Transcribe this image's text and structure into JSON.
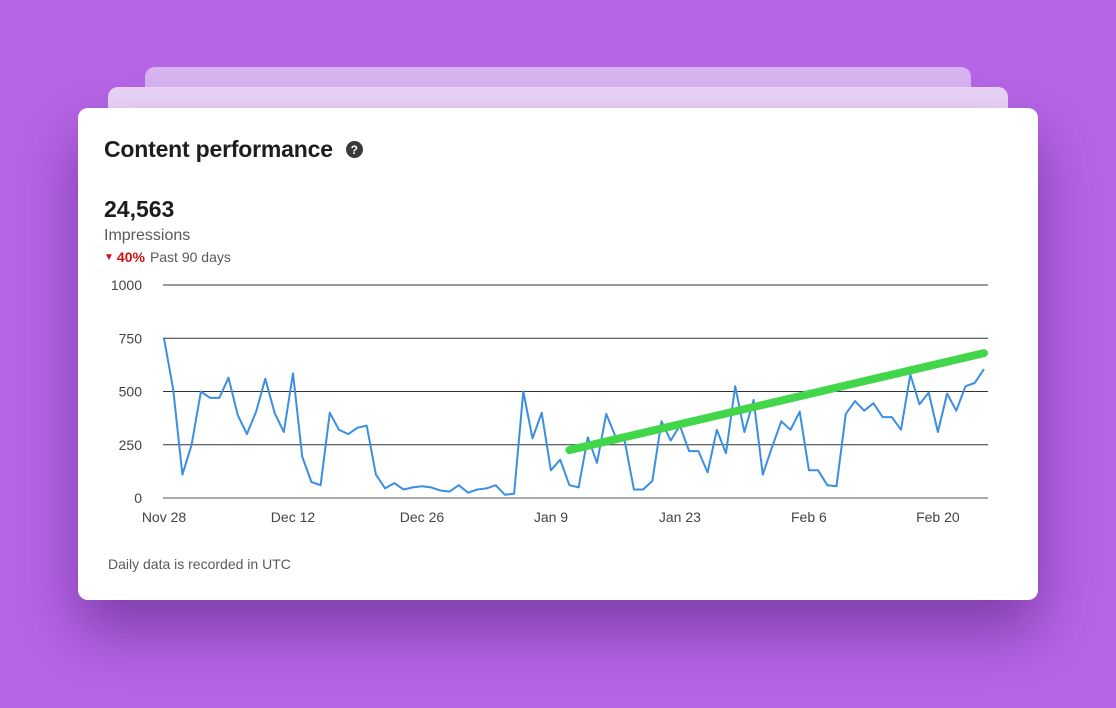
{
  "card": {
    "title": "Content performance",
    "help_icon": "question-circle-icon",
    "metric_value": "24,563",
    "metric_label": "Impressions",
    "change_icon": "triangle-down-icon",
    "change_pct": "40%",
    "change_period": "Past 90 days",
    "footnote": "Daily data is recorded in UTC"
  },
  "colors": {
    "background": "#b565e6",
    "series": "#3a8fe0",
    "trend": "#42d64a",
    "negative": "#cc1016"
  },
  "chart_data": {
    "type": "line",
    "title": "",
    "xlabel": "",
    "ylabel": "",
    "ylim": [
      0,
      1000
    ],
    "yticks": [
      0,
      250,
      500,
      750,
      1000
    ],
    "ytick_labels": [
      "0",
      "250",
      "500",
      "750",
      "1000"
    ],
    "xtick_labels": [
      "Nov 28",
      "Dec 12",
      "Dec 26",
      "Jan 9",
      "Jan 23",
      "Feb 6",
      "Feb 20"
    ],
    "xtick_dates": [
      "Nov 28",
      "Dec 12",
      "Dec 26",
      "Jan 9",
      "Jan 23",
      "Feb 6",
      "Feb 20"
    ],
    "grid": true,
    "legend": "none",
    "series": [
      {
        "x": [
          "Nov 28",
          "Nov 29",
          "Nov 30",
          "Dec 1",
          "Dec 2",
          "Dec 3",
          "Dec 4",
          "Dec 5",
          "Dec 6",
          "Dec 7",
          "Dec 8",
          "Dec 9",
          "Dec 10",
          "Dec 11",
          "Dec 12",
          "Dec 13",
          "Dec 14",
          "Dec 15",
          "Dec 16",
          "Dec 17",
          "Dec 18",
          "Dec 19",
          "Dec 20",
          "Dec 21",
          "Dec 22",
          "Dec 23",
          "Dec 24",
          "Dec 25",
          "Dec 26",
          "Dec 27",
          "Dec 28",
          "Dec 29",
          "Dec 30",
          "Dec 31",
          "Jan 1",
          "Jan 2",
          "Jan 3",
          "Jan 4",
          "Jan 5",
          "Jan 6",
          "Jan 7",
          "Jan 8",
          "Jan 9",
          "Jan 10",
          "Jan 11",
          "Jan 12",
          "Jan 13",
          "Jan 14",
          "Jan 15",
          "Jan 16",
          "Jan 17",
          "Jan 18",
          "Jan 19",
          "Jan 20",
          "Jan 21",
          "Jan 22",
          "Jan 23",
          "Jan 24",
          "Jan 25",
          "Jan 26",
          "Jan 27",
          "Jan 28",
          "Jan 29",
          "Jan 30",
          "Jan 31",
          "Feb 1",
          "Feb 2",
          "Feb 3",
          "Feb 4",
          "Feb 5",
          "Feb 6",
          "Feb 7",
          "Feb 8",
          "Feb 9",
          "Feb 10",
          "Feb 11",
          "Feb 12",
          "Feb 13",
          "Feb 14",
          "Feb 15",
          "Feb 16",
          "Feb 17",
          "Feb 18",
          "Feb 19",
          "Feb 20",
          "Feb 21",
          "Feb 22",
          "Feb 23",
          "Feb 24",
          "Feb 25"
        ],
        "values": [
          750,
          510,
          110,
          250,
          500,
          470,
          470,
          565,
          390,
          300,
          405,
          560,
          400,
          310,
          585,
          195,
          75,
          60,
          400,
          320,
          300,
          330,
          340,
          110,
          45,
          70,
          40,
          50,
          55,
          50,
          35,
          30,
          60,
          25,
          40,
          45,
          60,
          15,
          20,
          500,
          280,
          400,
          130,
          180,
          60,
          50,
          285,
          165,
          395,
          290,
          270,
          40,
          40,
          80,
          360,
          270,
          340,
          220,
          220,
          120,
          320,
          210,
          525,
          310,
          460,
          110,
          240,
          360,
          320,
          405,
          130,
          130,
          60,
          55,
          395,
          455,
          410,
          445,
          380,
          380,
          320,
          580,
          440,
          495,
          310,
          490,
          410,
          525,
          540,
          605
        ]
      }
    ],
    "annotations": [
      {
        "type": "trend-line",
        "x_start": "Jan 11",
        "y_start": 225,
        "x_end": "Feb 25",
        "y_end": 680
      }
    ]
  }
}
